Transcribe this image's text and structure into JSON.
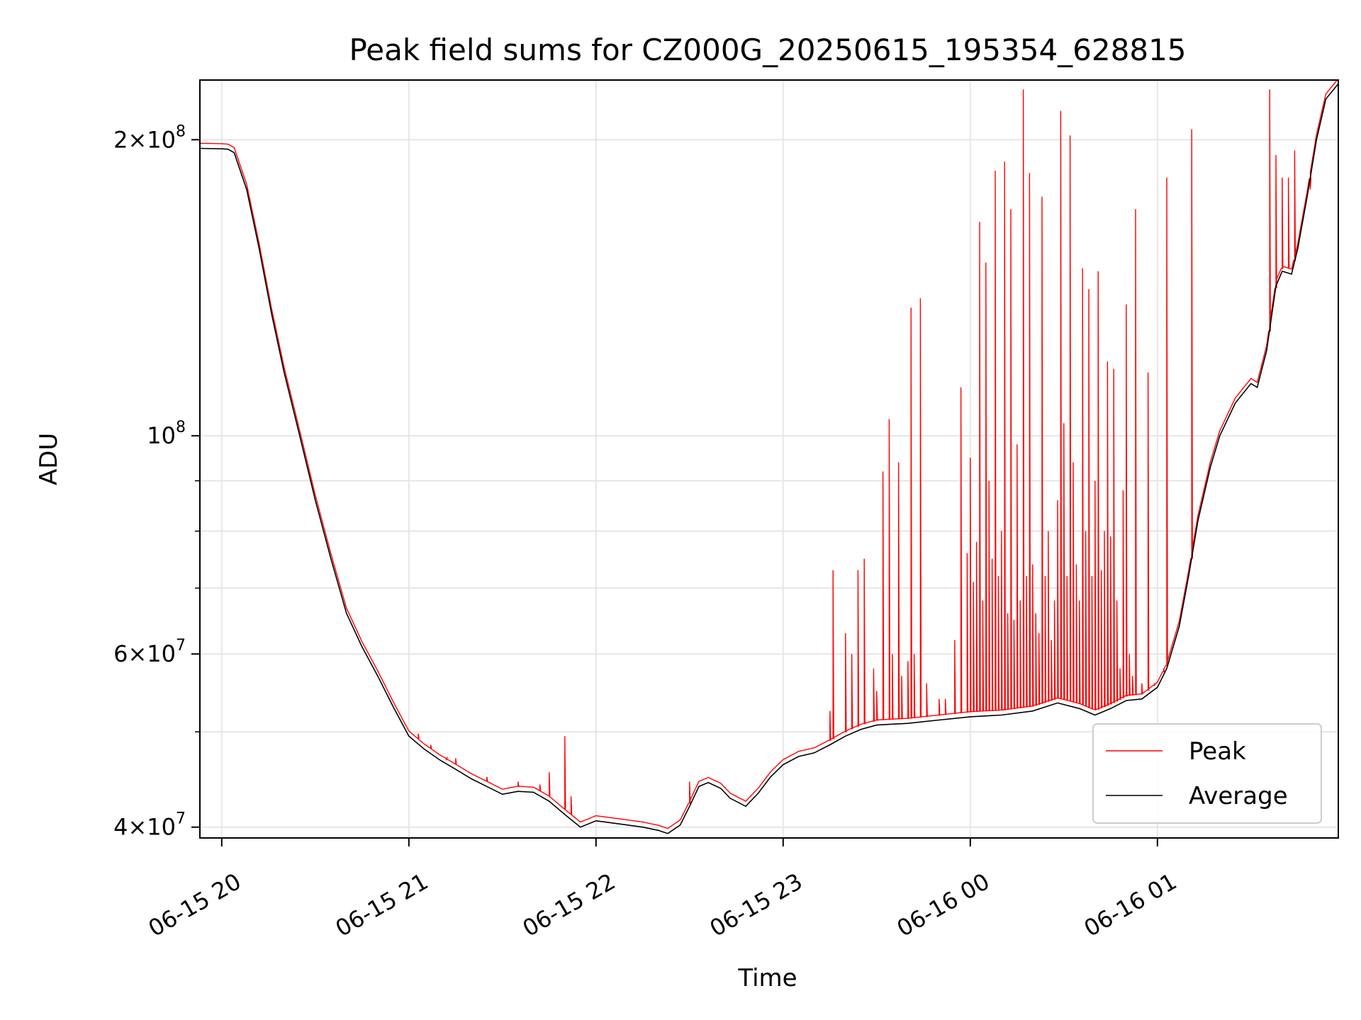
{
  "chart_data": {
    "type": "line",
    "title": "Peak field sums for CZ000G_20250615_195354_628815",
    "xlabel": "Time",
    "ylabel": "ADU",
    "y_scale": "log",
    "ylim": [
      39000000,
      230000000
    ],
    "xlim": [
      "2025-06-15 19:53",
      "2025-06-16 01:58"
    ],
    "grid": true,
    "legend_position": "lower-right",
    "x_ticks": [
      {
        "value": "2025-06-15 20:00",
        "label": "06-15 20"
      },
      {
        "value": "2025-06-15 21:00",
        "label": "06-15 21"
      },
      {
        "value": "2025-06-15 22:00",
        "label": "06-15 22"
      },
      {
        "value": "2025-06-15 23:00",
        "label": "06-15 23"
      },
      {
        "value": "2025-06-16 00:00",
        "label": "06-16 00"
      },
      {
        "value": "2025-06-16 01:00",
        "label": "06-16 01"
      }
    ],
    "y_ticks": [
      {
        "value": 40000000,
        "base": "4",
        "exp": "7"
      },
      {
        "value": 60000000,
        "base": "6",
        "exp": "7"
      },
      {
        "value": 100000000,
        "base": "",
        "exp": "8"
      },
      {
        "value": 200000000,
        "base": "2",
        "exp": "8"
      }
    ],
    "y_minor_ticks": [
      50000000,
      70000000,
      80000000,
      90000000
    ],
    "series": [
      {
        "name": "Average",
        "color": "#000000",
        "points": [
          [
            "2025-06-15 19:53",
            196000000
          ],
          [
            "2025-06-15 20:00",
            195800000
          ],
          [
            "2025-06-15 20:02",
            195600000
          ],
          [
            "2025-06-15 20:04",
            194000000
          ],
          [
            "2025-06-15 20:08",
            178000000
          ],
          [
            "2025-06-15 20:12",
            155000000
          ],
          [
            "2025-06-15 20:16",
            133000000
          ],
          [
            "2025-06-15 20:20",
            116000000
          ],
          [
            "2025-06-15 20:25",
            100000000
          ],
          [
            "2025-06-15 20:30",
            86000000
          ],
          [
            "2025-06-15 20:35",
            75000000
          ],
          [
            "2025-06-15 20:40",
            66000000
          ],
          [
            "2025-06-15 20:45",
            61000000
          ],
          [
            "2025-06-15 20:50",
            57000000
          ],
          [
            "2025-06-15 20:55",
            53000000
          ],
          [
            "2025-06-15 21:00",
            49500000
          ],
          [
            "2025-06-15 21:05",
            48000000
          ],
          [
            "2025-06-15 21:10",
            46800000
          ],
          [
            "2025-06-15 21:15",
            45800000
          ],
          [
            "2025-06-15 21:20",
            44800000
          ],
          [
            "2025-06-15 21:25",
            44000000
          ],
          [
            "2025-06-15 21:30",
            43200000
          ],
          [
            "2025-06-15 21:35",
            43500000
          ],
          [
            "2025-06-15 21:40",
            43400000
          ],
          [
            "2025-06-15 21:45",
            42500000
          ],
          [
            "2025-06-15 21:50",
            41200000
          ],
          [
            "2025-06-15 21:55",
            40000000
          ],
          [
            "2025-06-15 22:00",
            40600000
          ],
          [
            "2025-06-15 22:05",
            40400000
          ],
          [
            "2025-06-15 22:10",
            40200000
          ],
          [
            "2025-06-15 22:15",
            40000000
          ],
          [
            "2025-06-15 22:20",
            39700000
          ],
          [
            "2025-06-15 22:23",
            39400000
          ],
          [
            "2025-06-15 22:27",
            40200000
          ],
          [
            "2025-06-15 22:30",
            42000000
          ],
          [
            "2025-06-15 22:33",
            44000000
          ],
          [
            "2025-06-15 22:36",
            44400000
          ],
          [
            "2025-06-15 22:40",
            43800000
          ],
          [
            "2025-06-15 22:43",
            42800000
          ],
          [
            "2025-06-15 22:48",
            42000000
          ],
          [
            "2025-06-15 22:52",
            43300000
          ],
          [
            "2025-06-15 22:56",
            45000000
          ],
          [
            "2025-06-15 23:00",
            46300000
          ],
          [
            "2025-06-15 23:05",
            47200000
          ],
          [
            "2025-06-15 23:10",
            47600000
          ],
          [
            "2025-06-15 23:15",
            48500000
          ],
          [
            "2025-06-15 23:20",
            49500000
          ],
          [
            "2025-06-15 23:25",
            50300000
          ],
          [
            "2025-06-15 23:30",
            50800000
          ],
          [
            "2025-06-15 23:40",
            51000000
          ],
          [
            "2025-06-15 23:50",
            51400000
          ],
          [
            "2025-06-16 00:00",
            51800000
          ],
          [
            "2025-06-16 00:10",
            52000000
          ],
          [
            "2025-06-16 00:20",
            52500000
          ],
          [
            "2025-06-16 00:28",
            53500000
          ],
          [
            "2025-06-16 00:35",
            52800000
          ],
          [
            "2025-06-16 00:40",
            52000000
          ],
          [
            "2025-06-16 00:45",
            52800000
          ],
          [
            "2025-06-16 00:50",
            53800000
          ],
          [
            "2025-06-16 00:55",
            54000000
          ],
          [
            "2025-06-16 01:00",
            55500000
          ],
          [
            "2025-06-16 01:03",
            58000000
          ],
          [
            "2025-06-16 01:07",
            64000000
          ],
          [
            "2025-06-16 01:10",
            72000000
          ],
          [
            "2025-06-16 01:13",
            82000000
          ],
          [
            "2025-06-16 01:17",
            93000000
          ],
          [
            "2025-06-16 01:20",
            100000000
          ],
          [
            "2025-06-16 01:25",
            108000000
          ],
          [
            "2025-06-16 01:30",
            113000000
          ],
          [
            "2025-06-16 01:32",
            112000000
          ],
          [
            "2025-06-16 01:35",
            122000000
          ],
          [
            "2025-06-16 01:38",
            142000000
          ],
          [
            "2025-06-16 01:40",
            147000000
          ],
          [
            "2025-06-16 01:43",
            146000000
          ],
          [
            "2025-06-16 01:45",
            155000000
          ],
          [
            "2025-06-16 01:48",
            175000000
          ],
          [
            "2025-06-16 01:51",
            200000000
          ],
          [
            "2025-06-16 01:54",
            220000000
          ],
          [
            "2025-06-16 01:58",
            228000000
          ]
        ]
      },
      {
        "name": "Peak",
        "color": "#ff0000",
        "spikes": [
          [
            "2025-06-15 21:03",
            49800000
          ],
          [
            "2025-06-15 21:07",
            48500000
          ],
          [
            "2025-06-15 21:12",
            46800000
          ],
          [
            "2025-06-15 21:15",
            47000000
          ],
          [
            "2025-06-15 21:25",
            45000000
          ],
          [
            "2025-06-15 21:35",
            44500000
          ],
          [
            "2025-06-15 21:42",
            44200000
          ],
          [
            "2025-06-15 21:45",
            45500000
          ],
          [
            "2025-06-15 21:50",
            49500000
          ],
          [
            "2025-06-15 21:52",
            43000000
          ],
          [
            "2025-06-15 22:30",
            44500000
          ],
          [
            "2025-06-15 23:15",
            52500000
          ],
          [
            "2025-06-15 23:16",
            73000000
          ],
          [
            "2025-06-15 23:20",
            63000000
          ],
          [
            "2025-06-15 23:22",
            60000000
          ],
          [
            "2025-06-15 23:24",
            73000000
          ],
          [
            "2025-06-15 23:26",
            75000000
          ],
          [
            "2025-06-15 23:29",
            58000000
          ],
          [
            "2025-06-15 23:30",
            55000000
          ],
          [
            "2025-06-15 23:32",
            92000000
          ],
          [
            "2025-06-15 23:34",
            104000000
          ],
          [
            "2025-06-15 23:35",
            60000000
          ],
          [
            "2025-06-15 23:37",
            94000000
          ],
          [
            "2025-06-15 23:38",
            57000000
          ],
          [
            "2025-06-15 23:40",
            59000000
          ],
          [
            "2025-06-15 23:41",
            135000000
          ],
          [
            "2025-06-15 23:42",
            60000000
          ],
          [
            "2025-06-15 23:44",
            138000000
          ],
          [
            "2025-06-15 23:46",
            56000000
          ],
          [
            "2025-06-15 23:50",
            54000000
          ],
          [
            "2025-06-15 23:52",
            54000000
          ],
          [
            "2025-06-15 23:55",
            62000000
          ],
          [
            "2025-06-15 23:57",
            112000000
          ],
          [
            "2025-06-15 23:59",
            76000000
          ],
          [
            "2025-06-16 00:00",
            95000000
          ],
          [
            "2025-06-16 00:01",
            71000000
          ],
          [
            "2025-06-16 00:02",
            78000000
          ],
          [
            "2025-06-16 00:03",
            165000000
          ],
          [
            "2025-06-16 00:04",
            68000000
          ],
          [
            "2025-06-16 00:05",
            150000000
          ],
          [
            "2025-06-16 00:06",
            90000000
          ],
          [
            "2025-06-16 00:07",
            75000000
          ],
          [
            "2025-06-16 00:08",
            186000000
          ],
          [
            "2025-06-16 00:09",
            72000000
          ],
          [
            "2025-06-16 00:10",
            80000000
          ],
          [
            "2025-06-16 00:11",
            190000000
          ],
          [
            "2025-06-16 00:12",
            66000000
          ],
          [
            "2025-06-16 00:13",
            170000000
          ],
          [
            "2025-06-16 00:14",
            65000000
          ],
          [
            "2025-06-16 00:15",
            98000000
          ],
          [
            "2025-06-16 00:16",
            68000000
          ],
          [
            "2025-06-16 00:17",
            225000000
          ],
          [
            "2025-06-16 00:18",
            72000000
          ],
          [
            "2025-06-16 00:19",
            185000000
          ],
          [
            "2025-06-16 00:20",
            74000000
          ],
          [
            "2025-06-16 00:21",
            66000000
          ],
          [
            "2025-06-16 00:22",
            63000000
          ],
          [
            "2025-06-16 00:23",
            175000000
          ],
          [
            "2025-06-16 00:24",
            72000000
          ],
          [
            "2025-06-16 00:25",
            80000000
          ],
          [
            "2025-06-16 00:26",
            62000000
          ],
          [
            "2025-06-16 00:27",
            68000000
          ],
          [
            "2025-06-16 00:28",
            86000000
          ],
          [
            "2025-06-16 00:29",
            214000000
          ],
          [
            "2025-06-16 00:30",
            103000000
          ],
          [
            "2025-06-16 00:31",
            72000000
          ],
          [
            "2025-06-16 00:32",
            202000000
          ],
          [
            "2025-06-16 00:33",
            94000000
          ],
          [
            "2025-06-16 00:34",
            74000000
          ],
          [
            "2025-06-16 00:35",
            68000000
          ],
          [
            "2025-06-16 00:36",
            148000000
          ],
          [
            "2025-06-16 00:37",
            80000000
          ],
          [
            "2025-06-16 00:38",
            141000000
          ],
          [
            "2025-06-16 00:39",
            72000000
          ],
          [
            "2025-06-16 00:40",
            90000000
          ],
          [
            "2025-06-16 00:41",
            147000000
          ],
          [
            "2025-06-16 00:42",
            73000000
          ],
          [
            "2025-06-16 00:43",
            80000000
          ],
          [
            "2025-06-16 00:44",
            119000000
          ],
          [
            "2025-06-16 00:45",
            79000000
          ],
          [
            "2025-06-16 00:46",
            117000000
          ],
          [
            "2025-06-16 00:47",
            68000000
          ],
          [
            "2025-06-16 00:48",
            58000000
          ],
          [
            "2025-06-16 00:49",
            88000000
          ],
          [
            "2025-06-16 00:50",
            136000000
          ],
          [
            "2025-06-16 00:51",
            60000000
          ],
          [
            "2025-06-16 00:52",
            57000000
          ],
          [
            "2025-06-16 00:53",
            170000000
          ],
          [
            "2025-06-16 00:55",
            56000000
          ],
          [
            "2025-06-16 00:57",
            116000000
          ],
          [
            "2025-06-16 00:59",
            56000000
          ],
          [
            "2025-06-16 01:02",
            58000000
          ],
          [
            "2025-06-16 01:03",
            183000000
          ],
          [
            "2025-06-16 01:11",
            205000000
          ],
          [
            "2025-06-16 01:36",
            225000000
          ],
          [
            "2025-06-16 01:38",
            193000000
          ],
          [
            "2025-06-16 01:40",
            183000000
          ],
          [
            "2025-06-16 01:42",
            183000000
          ],
          [
            "2025-06-16 01:44",
            195000000
          ],
          [
            "2025-06-16 01:49",
            178000000
          ]
        ]
      }
    ],
    "legend": [
      {
        "label": "Peak",
        "color": "#ff0000"
      },
      {
        "label": "Average",
        "color": "#000000"
      }
    ]
  }
}
